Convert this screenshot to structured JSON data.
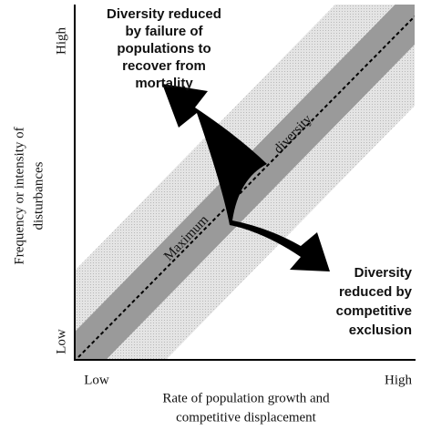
{
  "y_axis": {
    "high": "High",
    "low": "Low",
    "label": [
      "Frequency or intensity of",
      "disturbances"
    ]
  },
  "x_axis": {
    "low": "Low",
    "high": "High",
    "label": [
      "Rate of population growth and",
      "competitive displacement"
    ]
  },
  "band_label": [
    "Maximum",
    "diversity"
  ],
  "upper_note": [
    "Diversity reduced",
    "by failure of",
    "populations to",
    "recover from",
    "mortality"
  ],
  "lower_note": [
    "Diversity",
    "reduced by",
    "competitive",
    "exclusion"
  ]
}
